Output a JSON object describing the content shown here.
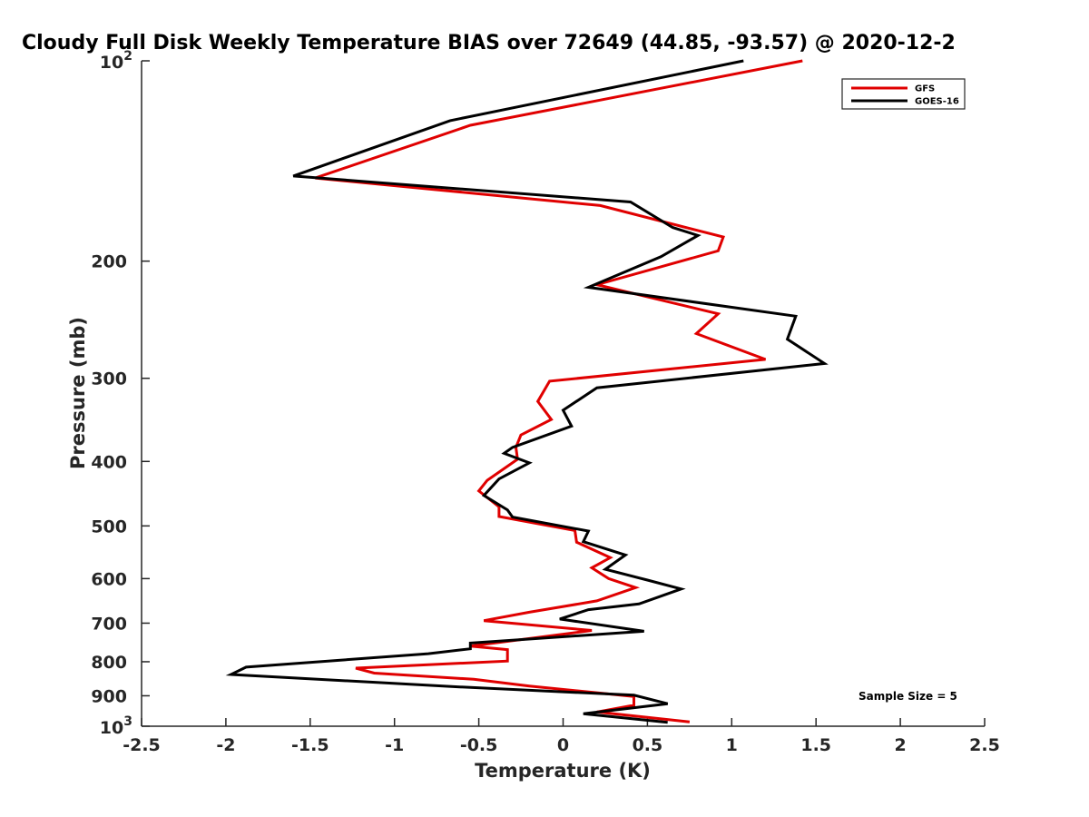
{
  "chart_data": {
    "type": "line",
    "title": "Cloudy Full Disk Weekly Temperature BIAS over 72649 (44.85, -93.57) @ 2020-12-2",
    "xlabel": "Temperature (K)",
    "ylabel": "Pressure (mb)",
    "xlim": [
      -2.5,
      2.5
    ],
    "ylim": [
      100,
      1000
    ],
    "yscale": "log",
    "y_reversed": true,
    "grid": false,
    "legend_position": "top-right",
    "x_ticks": [
      "-2.5",
      "-2",
      "-1.5",
      "-1",
      "-0.5",
      "0",
      "0.5",
      "1",
      "1.5",
      "2",
      "2.5"
    ],
    "y_ticks": [
      {
        "value": 100,
        "base": "10",
        "exp": "2"
      },
      {
        "value": 200,
        "label": "200"
      },
      {
        "value": 300,
        "label": "300"
      },
      {
        "value": 400,
        "label": "400"
      },
      {
        "value": 500,
        "label": "500"
      },
      {
        "value": 600,
        "label": "600"
      },
      {
        "value": 700,
        "label": "700"
      },
      {
        "value": 800,
        "label": "800"
      },
      {
        "value": 900,
        "label": "900"
      },
      {
        "value": 1000,
        "base": "10",
        "exp": "3"
      }
    ],
    "annotation": "Sample Size = 5",
    "series": [
      {
        "name": "GFS",
        "color": "#e00000",
        "points": [
          [
            1.42,
            100
          ],
          [
            -0.55,
            125
          ],
          [
            -1.47,
            150
          ],
          [
            0.22,
            165
          ],
          [
            0.95,
            184
          ],
          [
            0.92,
            193
          ],
          [
            0.2,
            217
          ],
          [
            0.92,
            240
          ],
          [
            0.79,
            257
          ],
          [
            1.2,
            281
          ],
          [
            -0.08,
            303
          ],
          [
            -0.15,
            325
          ],
          [
            -0.07,
            346
          ],
          [
            -0.25,
            365
          ],
          [
            -0.28,
            381
          ],
          [
            -0.27,
            397
          ],
          [
            -0.45,
            427
          ],
          [
            -0.5,
            443
          ],
          [
            -0.38,
            468
          ],
          [
            -0.38,
            484
          ],
          [
            0.07,
            508
          ],
          [
            0.08,
            529
          ],
          [
            0.28,
            558
          ],
          [
            0.17,
            578
          ],
          [
            0.27,
            600
          ],
          [
            0.43,
            619
          ],
          [
            0.2,
            648
          ],
          [
            -0.2,
            674
          ],
          [
            -0.47,
            694
          ],
          [
            0.17,
            718
          ],
          [
            -0.55,
            758
          ],
          [
            -0.33,
            767
          ],
          [
            -0.33,
            798
          ],
          [
            -1.23,
            818
          ],
          [
            -1.12,
            832
          ],
          [
            -0.53,
            850
          ],
          [
            -0.2,
            870
          ],
          [
            0.42,
            902
          ],
          [
            0.42,
            930
          ],
          [
            0.2,
            952
          ],
          [
            0.75,
            985
          ]
        ]
      },
      {
        "name": "GOES-16",
        "color": "#000000",
        "points": [
          [
            1.07,
            100
          ],
          [
            -0.67,
            123
          ],
          [
            -1.6,
            149
          ],
          [
            0.4,
            163
          ],
          [
            0.65,
            178
          ],
          [
            0.8,
            183
          ],
          [
            0.58,
            197
          ],
          [
            0.15,
            219
          ],
          [
            1.38,
            242
          ],
          [
            1.33,
            262
          ],
          [
            1.55,
            285
          ],
          [
            0.2,
            310
          ],
          [
            0.0,
            335
          ],
          [
            0.05,
            354
          ],
          [
            -0.3,
            381
          ],
          [
            -0.35,
            389
          ],
          [
            -0.2,
            402
          ],
          [
            -0.38,
            425
          ],
          [
            -0.47,
            450
          ],
          [
            -0.33,
            473
          ],
          [
            -0.3,
            485
          ],
          [
            0.15,
            509
          ],
          [
            0.12,
            528
          ],
          [
            0.37,
            553
          ],
          [
            0.25,
            581
          ],
          [
            0.5,
            603
          ],
          [
            0.7,
            622
          ],
          [
            0.45,
            655
          ],
          [
            0.15,
            668
          ],
          [
            -0.02,
            690
          ],
          [
            0.48,
            720
          ],
          [
            -0.55,
            750
          ],
          [
            -0.55,
            765
          ],
          [
            -0.8,
            778
          ],
          [
            -1.88,
            815
          ],
          [
            -1.97,
            836
          ],
          [
            -0.65,
            872
          ],
          [
            0.42,
            898
          ],
          [
            0.62,
            925
          ],
          [
            0.12,
            958
          ],
          [
            0.62,
            987
          ]
        ]
      }
    ]
  }
}
